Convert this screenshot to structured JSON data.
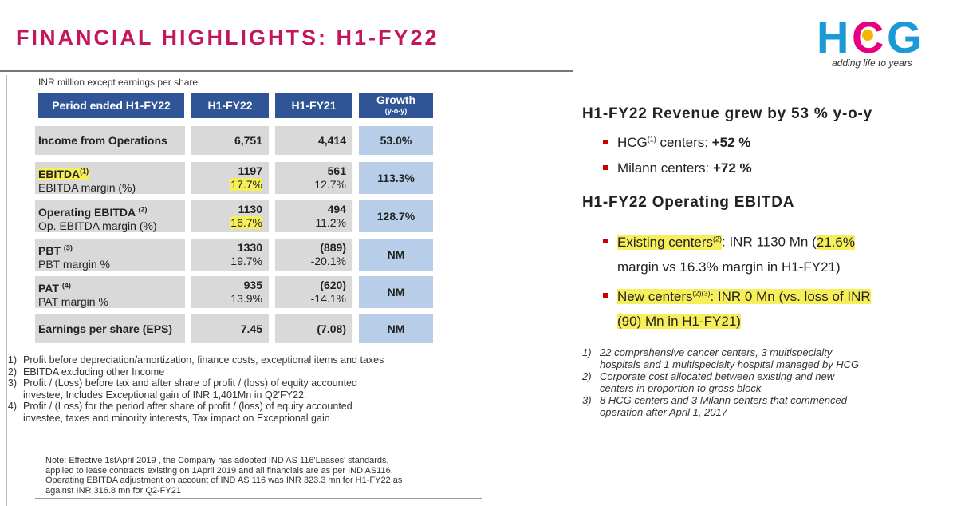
{
  "title": "FINANCIAL HIGHLIGHTS: H1-FY22",
  "logo": {
    "text": "HCG",
    "tagline": "adding life to years"
  },
  "table": {
    "units": "INR million except earnings per share",
    "headers": {
      "period": "Period ended H1-FY22",
      "c1": "H1-FY22",
      "c2": "H1-FY21",
      "growth": "Growth",
      "growth_sub": "(y-o-y)"
    },
    "rows": [
      {
        "label": "Income from Operations",
        "v1": "6,751",
        "v2": "4,414",
        "growth": "53.0%"
      },
      {
        "label": "EBITDA",
        "sup": "(1)",
        "sub": "EBITDA margin (%)",
        "v1": "1197",
        "v1s": "17.7%",
        "v2": "561",
        "v2s": "12.7%",
        "growth": "113.3%"
      },
      {
        "label": "Operating EBITDA",
        "sup": "(2)",
        "sub": "Op. EBITDA margin (%)",
        "v1": "1130",
        "v1s": "16.7%",
        "v2": "494",
        "v2s": "11.2%",
        "growth": "128.7%"
      },
      {
        "label": "PBT",
        "sup": "(3)",
        "sub": "PBT margin %",
        "v1": "1330",
        "v1s": "19.7%",
        "v2": "(889)",
        "v2s": "-20.1%",
        "growth": "NM"
      },
      {
        "label": "PAT",
        "sup": "(4)",
        "sub": "PAT margin %",
        "v1": "935",
        "v1s": "13.9%",
        "v2": "(620)",
        "v2s": "-14.1%",
        "growth": "NM"
      },
      {
        "label": "Earnings per share (EPS)",
        "v1": "7.45",
        "v2": "(7.08)",
        "growth": "NM"
      }
    ]
  },
  "footnotes": [
    {
      "n": "1)",
      "lines": [
        "Profit before depreciation/amortization, finance costs, exceptional items and taxes"
      ]
    },
    {
      "n": "2)",
      "lines": [
        "EBITDA excluding other Income"
      ]
    },
    {
      "n": "3)",
      "lines": [
        "Profit / (Loss) before tax and after share of profit / (loss) of equity accounted",
        "investee, Includes Exceptional gain of INR 1,401Mn in Q2'FY22."
      ]
    },
    {
      "n": "4)",
      "lines": [
        "Profit / (Loss) for the period after share of profit / (loss) of equity accounted",
        "investee, taxes and minority interests, Tax impact on Exceptional gain"
      ]
    }
  ],
  "note": {
    "lines": [
      "Note: Effective 1stApril 2019 , the Company has adopted IND AS 116'Leases' standards,",
      "applied to lease contracts existing on 1April 2019 and all financials are as per IND AS116.",
      "Operating EBITDA adjustment on account of IND AS 116 was INR 323.3 mn for H1-FY22 as",
      "against INR 316.8 mn for Q2-FY21"
    ]
  },
  "right": {
    "revenue_heading": "H1-FY22 Revenue grew by 53 % y-o-y",
    "hcg": {
      "pre": "HCG",
      "sup": "(1)",
      "mid": " centers: ",
      "val": "+52 %"
    },
    "milann": {
      "pre": "Milann centers: ",
      "val": "+72 %"
    },
    "ebitda_heading": "H1-FY22 Operating EBITDA",
    "existing": {
      "hl1": "Existing centers",
      "sup": "(2)",
      "mid": ": INR 1130 Mn (",
      "hl2": "21.6%",
      "line2": "margin vs 16.3% margin in H1-FY21)"
    },
    "newc": {
      "hl1": "New centers",
      "sup": "(2)(3)",
      "mid": ": INR 0 Mn (vs. loss of INR",
      "line2": "(90) Mn in H1-FY21)"
    },
    "footnotes": [
      {
        "n": "1)",
        "lines": [
          "22 comprehensive cancer centers, 3 multispecialty",
          "hospitals and 1 multispecialty hospital managed by HCG"
        ]
      },
      {
        "n": "2)",
        "lines": [
          "Corporate cost allocated between existing and new",
          "centers in proportion to gross block"
        ]
      },
      {
        "n": "3)",
        "lines": [
          "8 HCG centers and 3 Milann centers that commenced",
          "operation after April 1, 2017"
        ]
      }
    ]
  },
  "colors": {
    "title": "#c2185b",
    "header": "#2f5597",
    "growth_cell": "#b7cde8",
    "label_cell": "#d9d9d9",
    "highlight": "#f7ef5a",
    "bullet": "#cc0000"
  }
}
